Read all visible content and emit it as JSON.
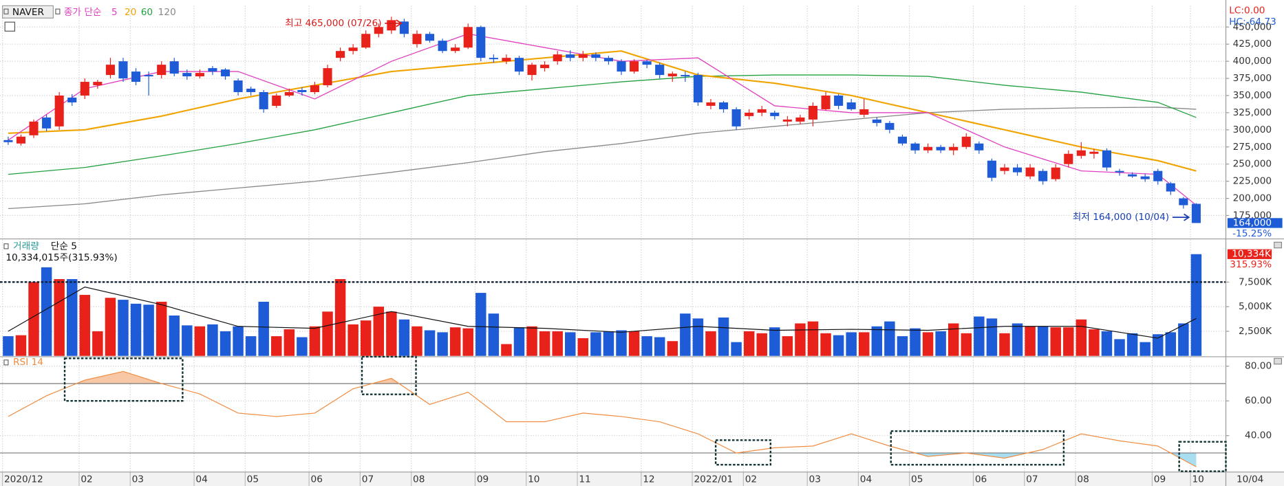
{
  "chart_data": [
    {
      "type": "candlestick",
      "title": "NAVER",
      "ma_label": "종가 단순",
      "up_color": "#e8221b",
      "down_color": "#1e5bd6",
      "grid": true,
      "ylim": [
        142000,
        481000
      ],
      "yticks": [
        {
          "value": 175000,
          "label": "175,000"
        },
        {
          "value": 200000,
          "label": "200,000"
        },
        {
          "value": 225000,
          "label": "225,000"
        },
        {
          "value": 250000,
          "label": "250,000"
        },
        {
          "value": 275000,
          "label": "275,000"
        },
        {
          "value": 300000,
          "label": "300,000"
        },
        {
          "value": 325000,
          "label": "325,000"
        },
        {
          "value": 350000,
          "label": "350,000"
        },
        {
          "value": 375000,
          "label": "375,000"
        },
        {
          "value": 400000,
          "label": "400,000"
        },
        {
          "value": 425000,
          "label": "425,000"
        },
        {
          "value": 450000,
          "label": "450,000"
        }
      ],
      "categories": [
        "2020/12",
        null,
        null,
        null,
        null,
        null,
        "02",
        null,
        null,
        null,
        "03",
        null,
        null,
        null,
        null,
        "04",
        null,
        null,
        null,
        "05",
        null,
        null,
        null,
        null,
        "06",
        null,
        null,
        null,
        "07",
        null,
        null,
        null,
        "08",
        null,
        null,
        null,
        null,
        "09",
        null,
        null,
        null,
        "10",
        null,
        null,
        null,
        "11",
        null,
        null,
        null,
        null,
        "12",
        null,
        null,
        null,
        "2022/01",
        null,
        null,
        null,
        "02",
        null,
        null,
        null,
        null,
        "03",
        null,
        null,
        null,
        "04",
        null,
        null,
        null,
        "05",
        null,
        null,
        null,
        null,
        "06",
        null,
        null,
        null,
        "07",
        null,
        null,
        null,
        "08",
        null,
        null,
        null,
        null,
        null,
        "09",
        null,
        null,
        "10"
      ],
      "last_date": "10/04",
      "candles": [
        [
          285000,
          290000,
          278000,
          282000
        ],
        [
          280000,
          293000,
          277000,
          290000
        ],
        [
          292000,
          315000,
          288000,
          312000
        ],
        [
          318000,
          322000,
          298000,
          302000
        ],
        [
          305000,
          355000,
          300000,
          350000
        ],
        [
          347000,
          352000,
          335000,
          340000
        ],
        [
          350000,
          375000,
          345000,
          370000
        ],
        [
          365000,
          373000,
          360000,
          370000
        ],
        [
          380000,
          405000,
          375000,
          395000
        ],
        [
          400000,
          405000,
          370000,
          375000
        ],
        [
          385000,
          390000,
          365000,
          370000
        ],
        [
          380000,
          385000,
          350000,
          378000
        ],
        [
          380000,
          400000,
          375000,
          395000
        ],
        [
          400000,
          405000,
          378000,
          382000
        ],
        [
          383000,
          388000,
          373000,
          378000
        ],
        [
          378000,
          388000,
          375000,
          383000
        ],
        [
          390000,
          393000,
          380000,
          385000
        ],
        [
          388000,
          390000,
          373000,
          378000
        ],
        [
          372000,
          375000,
          350000,
          355000
        ],
        [
          360000,
          363000,
          350000,
          355000
        ],
        [
          355000,
          358000,
          325000,
          330000
        ],
        [
          335000,
          353000,
          332000,
          350000
        ],
        [
          350000,
          360000,
          348000,
          355000
        ],
        [
          358000,
          362000,
          350000,
          355000
        ],
        [
          355000,
          370000,
          352000,
          365000
        ],
        [
          365000,
          395000,
          362000,
          390000
        ],
        [
          405000,
          420000,
          400000,
          415000
        ],
        [
          415000,
          425000,
          410000,
          420000
        ],
        [
          420000,
          445000,
          418000,
          440000
        ],
        [
          440000,
          455000,
          435000,
          450000
        ],
        [
          445000,
          465000,
          440000,
          460000
        ],
        [
          458000,
          462000,
          435000,
          440000
        ],
        [
          425000,
          445000,
          420000,
          440000
        ],
        [
          440000,
          443000,
          427000,
          430000
        ],
        [
          430000,
          433000,
          412000,
          415000
        ],
        [
          415000,
          425000,
          412000,
          420000
        ],
        [
          420000,
          455000,
          418000,
          450000
        ],
        [
          450000,
          452000,
          400000,
          405000
        ],
        [
          405000,
          410000,
          398000,
          403000
        ],
        [
          400000,
          410000,
          396000,
          405000
        ],
        [
          405000,
          408000,
          380000,
          385000
        ],
        [
          380000,
          398000,
          372000,
          395000
        ],
        [
          390000,
          400000,
          385000,
          395000
        ],
        [
          400000,
          415000,
          395000,
          410000
        ],
        [
          410000,
          416000,
          400000,
          405000
        ],
        [
          405000,
          415000,
          400000,
          410000
        ],
        [
          410000,
          413000,
          400000,
          405000
        ],
        [
          405000,
          408000,
          395000,
          400000
        ],
        [
          400000,
          403000,
          380000,
          385000
        ],
        [
          385000,
          403000,
          382000,
          400000
        ],
        [
          400000,
          402000,
          390000,
          395000
        ],
        [
          395000,
          398000,
          375000,
          380000
        ],
        [
          378000,
          385000,
          370000,
          382000
        ],
        [
          380000,
          385000,
          370000,
          378000
        ],
        [
          380000,
          383000,
          335000,
          340000
        ],
        [
          335000,
          345000,
          330000,
          340000
        ],
        [
          340000,
          342000,
          325000,
          330000
        ],
        [
          330000,
          333000,
          300000,
          305000
        ],
        [
          320000,
          330000,
          315000,
          325000
        ],
        [
          325000,
          335000,
          320000,
          330000
        ],
        [
          325000,
          328000,
          315000,
          320000
        ],
        [
          312000,
          320000,
          305000,
          315000
        ],
        [
          312000,
          322000,
          308000,
          318000
        ],
        [
          315000,
          340000,
          305000,
          335000
        ],
        [
          330000,
          355000,
          328000,
          350000
        ],
        [
          350000,
          352000,
          330000,
          335000
        ],
        [
          340000,
          345000,
          328000,
          330000
        ],
        [
          322000,
          345000,
          318000,
          330000
        ],
        [
          315000,
          318000,
          305000,
          310000
        ],
        [
          310000,
          313000,
          295000,
          300000
        ],
        [
          290000,
          293000,
          277000,
          280000
        ],
        [
          280000,
          282000,
          265000,
          270000
        ],
        [
          270000,
          280000,
          266000,
          275000
        ],
        [
          275000,
          278000,
          266000,
          270000
        ],
        [
          270000,
          280000,
          263000,
          275000
        ],
        [
          275000,
          295000,
          272000,
          290000
        ],
        [
          280000,
          283000,
          265000,
          270000
        ],
        [
          255000,
          258000,
          225000,
          230000
        ],
        [
          240000,
          250000,
          235000,
          245000
        ],
        [
          245000,
          250000,
          233000,
          238000
        ],
        [
          232000,
          250000,
          228000,
          245000
        ],
        [
          240000,
          243000,
          220000,
          225000
        ],
        [
          228000,
          250000,
          225000,
          245000
        ],
        [
          250000,
          270000,
          245000,
          265000
        ],
        [
          262000,
          282000,
          258000,
          270000
        ],
        [
          265000,
          272000,
          258000,
          268000
        ],
        [
          270000,
          273000,
          240000,
          245000
        ],
        [
          240000,
          243000,
          233000,
          238000
        ],
        [
          235000,
          238000,
          230000,
          232000
        ],
        [
          232000,
          236000,
          224000,
          228000
        ],
        [
          240000,
          243000,
          220000,
          225000
        ],
        [
          222000,
          224000,
          205000,
          210000
        ],
        [
          200000,
          202000,
          185000,
          190000
        ],
        [
          192000,
          193000,
          164000,
          164000
        ]
      ],
      "series": [
        {
          "name": "5",
          "color": "#e040c0",
          "x": [
            0,
            6,
            12,
            18,
            24,
            30,
            36,
            42,
            48,
            54,
            60,
            66,
            72,
            78,
            84,
            90,
            93
          ],
          "values": [
            285000,
            360000,
            385000,
            385000,
            345000,
            400000,
            440000,
            420000,
            400000,
            405000,
            335000,
            325000,
            325000,
            275000,
            240000,
            235000,
            190000
          ]
        },
        {
          "name": "20",
          "color": "#f0a400",
          "x": [
            0,
            6,
            12,
            18,
            24,
            30,
            36,
            42,
            48,
            54,
            60,
            66,
            72,
            78,
            84,
            90,
            93
          ],
          "values": [
            295000,
            300000,
            320000,
            345000,
            365000,
            385000,
            395000,
            405000,
            415000,
            380000,
            368000,
            350000,
            325000,
            300000,
            275000,
            255000,
            240000
          ]
        },
        {
          "name": "60",
          "color": "#22a040",
          "x": [
            0,
            6,
            12,
            18,
            24,
            30,
            36,
            42,
            48,
            54,
            60,
            66,
            72,
            78,
            84,
            90,
            93
          ],
          "values": [
            235000,
            245000,
            262000,
            280000,
            300000,
            325000,
            350000,
            360000,
            370000,
            378000,
            380000,
            380000,
            378000,
            365000,
            355000,
            340000,
            318000
          ]
        },
        {
          "name": "120",
          "color": "#888888",
          "x": [
            0,
            6,
            12,
            18,
            24,
            30,
            36,
            42,
            48,
            54,
            60,
            66,
            72,
            78,
            84,
            90,
            93
          ],
          "values": [
            185000,
            192000,
            205000,
            215000,
            225000,
            238000,
            252000,
            268000,
            280000,
            295000,
            305000,
            315000,
            325000,
            330000,
            332000,
            333000,
            330000
          ]
        }
      ],
      "annotations": [
        {
          "text": "최고 465,000 (07/26)",
          "value": 465000,
          "index": 30
        },
        {
          "text": "최저 164,000 (10/04)",
          "value": 164000,
          "index": 93
        }
      ],
      "lc_label": "LC:0.00",
      "hc_label": "HC:-64.73",
      "last_price": {
        "value": 164000,
        "label": "164,000"
      },
      "change_label": "-15.25%"
    },
    {
      "type": "bar",
      "title": "거래량",
      "ylim": [
        0,
        11800000
      ],
      "yticks": [
        {
          "value": 2500000,
          "label": "2,500K"
        },
        {
          "value": 5000000,
          "label": "5,000K"
        },
        {
          "value": 7500000,
          "label": "7,500K"
        }
      ],
      "values": [
        2000000,
        2100000,
        7500000,
        9000000,
        7800000,
        7800000,
        6200000,
        2500000,
        5900000,
        5700000,
        5300000,
        5200000,
        5500000,
        4100000,
        3100000,
        3000000,
        3200000,
        2500000,
        3000000,
        2000000,
        5500000,
        2000000,
        2700000,
        1900000,
        3000000,
        4500000,
        7800000,
        3200000,
        3600000,
        5000000,
        4500000,
        3700000,
        3000000,
        2600000,
        2400000,
        2900000,
        2800000,
        6400000,
        4300000,
        1200000,
        2900000,
        3000000,
        2500000,
        2500000,
        2400000,
        1800000,
        2400000,
        2500000,
        2600000,
        2500000,
        2000000,
        1900000,
        1500000,
        4300000,
        3800000,
        2500000,
        3900000,
        1400000,
        2500000,
        2300000,
        2900000,
        2000000,
        3300000,
        3500000,
        2300000,
        2100000,
        2400000,
        2400000,
        3000000,
        3500000,
        2000000,
        2800000,
        2400000,
        2500000,
        3300000,
        2300000,
        4000000,
        3800000,
        2300000,
        3300000,
        3000000,
        3000000,
        2900000,
        2900000,
        3700000,
        2700000,
        2500000,
        1700000,
        2300000,
        1400000,
        2200000,
        2400000,
        3300000,
        10334015
      ],
      "summary": "10,334,015주(315.93%)",
      "last_value": {
        "value": 10334015,
        "label": "10,334K"
      },
      "ratio_label": "315.93%",
      "series": [
        {
          "name": "단순 5",
          "color": "#111111",
          "x": [
            0,
            6,
            12,
            18,
            24,
            30,
            36,
            42,
            48,
            54,
            60,
            66,
            72,
            78,
            84,
            90,
            93
          ],
          "values": [
            2500000,
            7000000,
            5200000,
            3000000,
            2800000,
            4500000,
            3000000,
            2800000,
            2400000,
            3000000,
            2600000,
            2700000,
            2600000,
            3000000,
            3000000,
            1800000,
            3800000
          ]
        }
      ]
    },
    {
      "type": "line",
      "title": "RSI 14",
      "color": "#f08c40",
      "ylim": [
        19,
        85
      ],
      "yticks": [
        {
          "value": 40,
          "label": "40.00"
        },
        {
          "value": 60,
          "label": "60.00"
        },
        {
          "value": 80,
          "label": "80.00"
        }
      ],
      "levels": [
        70,
        30
      ],
      "x": [
        0,
        3,
        6,
        9,
        12,
        15,
        18,
        21,
        24,
        27,
        30,
        33,
        36,
        39,
        42,
        45,
        48,
        51,
        54,
        57,
        60,
        63,
        66,
        69,
        72,
        75,
        78,
        81,
        84,
        87,
        90,
        93
      ],
      "values": [
        51,
        63,
        72,
        77,
        70,
        64,
        53,
        51,
        53,
        67,
        73,
        58,
        65,
        48,
        48,
        53,
        51,
        48,
        41,
        30,
        33,
        34,
        41,
        34,
        28,
        30,
        27,
        32,
        41,
        37,
        34,
        22
      ]
    }
  ]
}
